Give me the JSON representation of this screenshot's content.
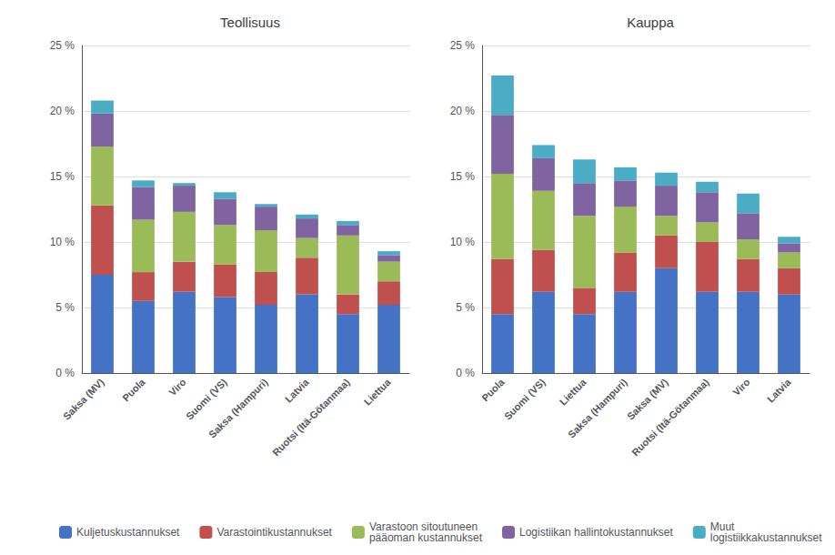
{
  "chart_data": [
    {
      "type": "bar",
      "title": "Teollisuus",
      "stacked": true,
      "grid": true,
      "legend": "lower left",
      "categories": [
        "Saksa (MV)",
        "Puola",
        "Viro",
        "Suomi (VS)",
        "Saksa (Hampuri)",
        "Latvia",
        "Ruotsi (Itä-Götanmaa)",
        "Liettua"
      ],
      "series": [
        {
          "name": "Kuljetuskustannukset",
          "color": "#4472C4",
          "values": [
            7.5,
            5.5,
            6.2,
            5.8,
            5.2,
            6.0,
            4.5,
            5.2
          ]
        },
        {
          "name": "Varastointikustannukset",
          "color": "#C0504D",
          "values": [
            5.3,
            2.2,
            2.3,
            2.5,
            2.5,
            2.8,
            1.5,
            1.8
          ]
        },
        {
          "name": "Varastoon sitoutuneen\npääoman kustannukset",
          "color": "#9BBB59",
          "values": [
            4.5,
            4.0,
            3.8,
            3.0,
            3.2,
            1.5,
            4.5,
            1.5
          ]
        },
        {
          "name": "Logistiikan hallintokustannukset",
          "color": "#8064A2",
          "values": [
            2.5,
            2.5,
            2.0,
            2.0,
            1.8,
            1.5,
            0.8,
            0.5
          ]
        },
        {
          "name": "Muut\nlogistiikkakustannukset",
          "color": "#4BACC6",
          "values": [
            1.0,
            0.5,
            0.2,
            0.5,
            0.2,
            0.3,
            0.3,
            0.3
          ]
        }
      ],
      "ylim": [
        0,
        25
      ],
      "yticks": [
        {
          "value": 0,
          "label": "0 %"
        },
        {
          "value": 5,
          "label": "5 %"
        },
        {
          "value": 10,
          "label": "10 %"
        },
        {
          "value": 15,
          "label": "15 %"
        },
        {
          "value": 20,
          "label": "20 %"
        },
        {
          "value": 25,
          "label": "25 %"
        }
      ]
    },
    {
      "type": "bar",
      "title": "Kauppa",
      "stacked": true,
      "grid": true,
      "legend": "lower left",
      "categories": [
        "Puola",
        "Suomi (VS)",
        "Liettua",
        "Saksa (Hampuri)",
        "Saksa (MV)",
        "Ruotsi (Itä-Götanmaa)",
        "Viro",
        "Latvia"
      ],
      "series": [
        {
          "name": "Kuljetuskustannukset",
          "color": "#4472C4",
          "values": [
            4.5,
            6.2,
            4.5,
            6.2,
            8.0,
            6.2,
            6.2,
            6.0
          ]
        },
        {
          "name": "Varastointikustannukset",
          "color": "#C0504D",
          "values": [
            4.2,
            3.2,
            2.0,
            3.0,
            2.5,
            3.8,
            2.5,
            2.0
          ]
        },
        {
          "name": "Varastoon sitoutuneen\npääoman kustannukset",
          "color": "#9BBB59",
          "values": [
            6.5,
            4.5,
            5.5,
            3.5,
            1.5,
            1.5,
            1.5,
            1.2
          ]
        },
        {
          "name": "Logistiikan hallintokustannukset",
          "color": "#8064A2",
          "values": [
            4.5,
            2.5,
            2.5,
            2.0,
            2.3,
            2.3,
            2.0,
            0.7
          ]
        },
        {
          "name": "Muut\nlogistiikkakustannukset",
          "color": "#4BACC6",
          "values": [
            3.0,
            1.0,
            1.8,
            1.0,
            1.0,
            0.8,
            1.5,
            0.5
          ]
        }
      ],
      "ylim": [
        0,
        25
      ],
      "yticks": [
        {
          "value": 0,
          "label": "0 %"
        },
        {
          "value": 5,
          "label": "5 %"
        },
        {
          "value": 10,
          "label": "10 %"
        },
        {
          "value": 15,
          "label": "15 %"
        },
        {
          "value": 20,
          "label": "20 %"
        },
        {
          "value": 25,
          "label": "25 %"
        }
      ]
    }
  ]
}
